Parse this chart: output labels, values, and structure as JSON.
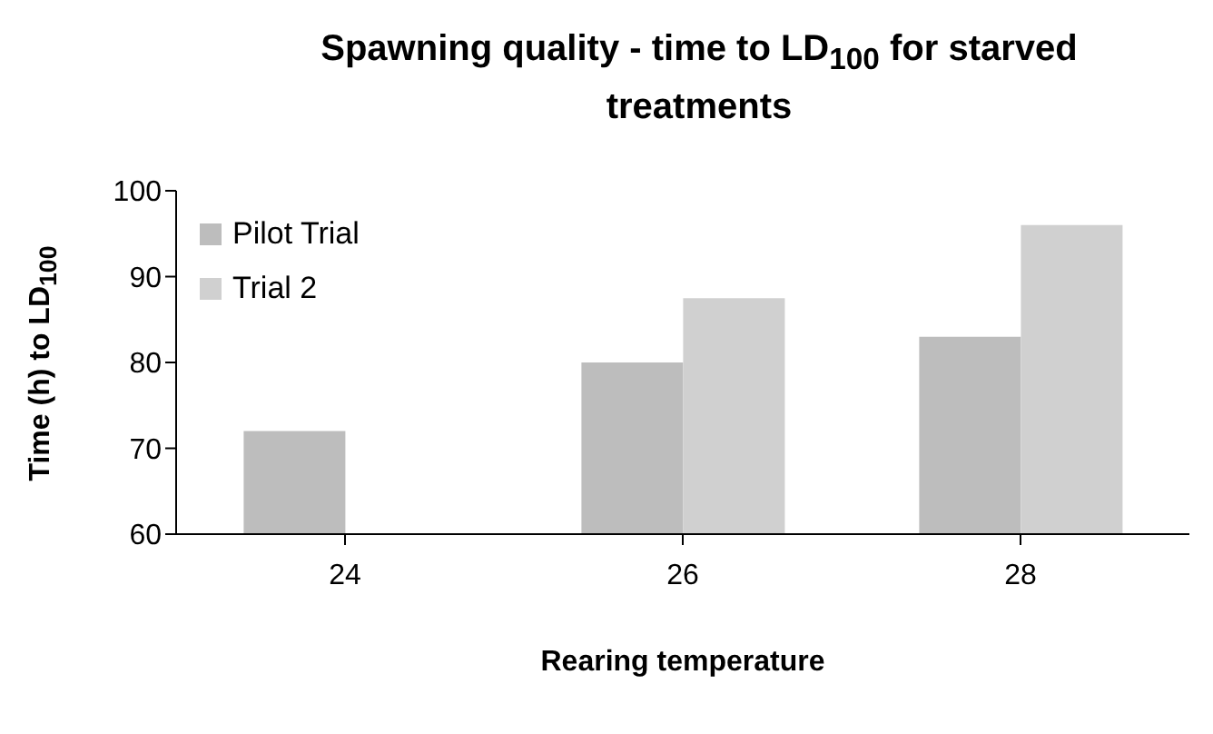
{
  "chart_data": {
    "type": "bar",
    "title": "Spawning quality - time to LD$_{100}$ for starved treatments",
    "xlabel": "Rearing temperature",
    "ylabel": "Time (h) to LD$_{100}$",
    "categories": [
      "24",
      "26",
      "28"
    ],
    "series": [
      {
        "name": "Pilot Trial",
        "color": "#bdbdbd",
        "values": [
          72,
          80,
          83
        ]
      },
      {
        "name": "Trial 2",
        "color": "#d0d0d0",
        "values": [
          null,
          87.5,
          96
        ]
      }
    ],
    "ylim": [
      60,
      100
    ],
    "yticks": [
      60,
      70,
      80,
      90,
      100
    ],
    "grid": false,
    "legend": "top left"
  }
}
